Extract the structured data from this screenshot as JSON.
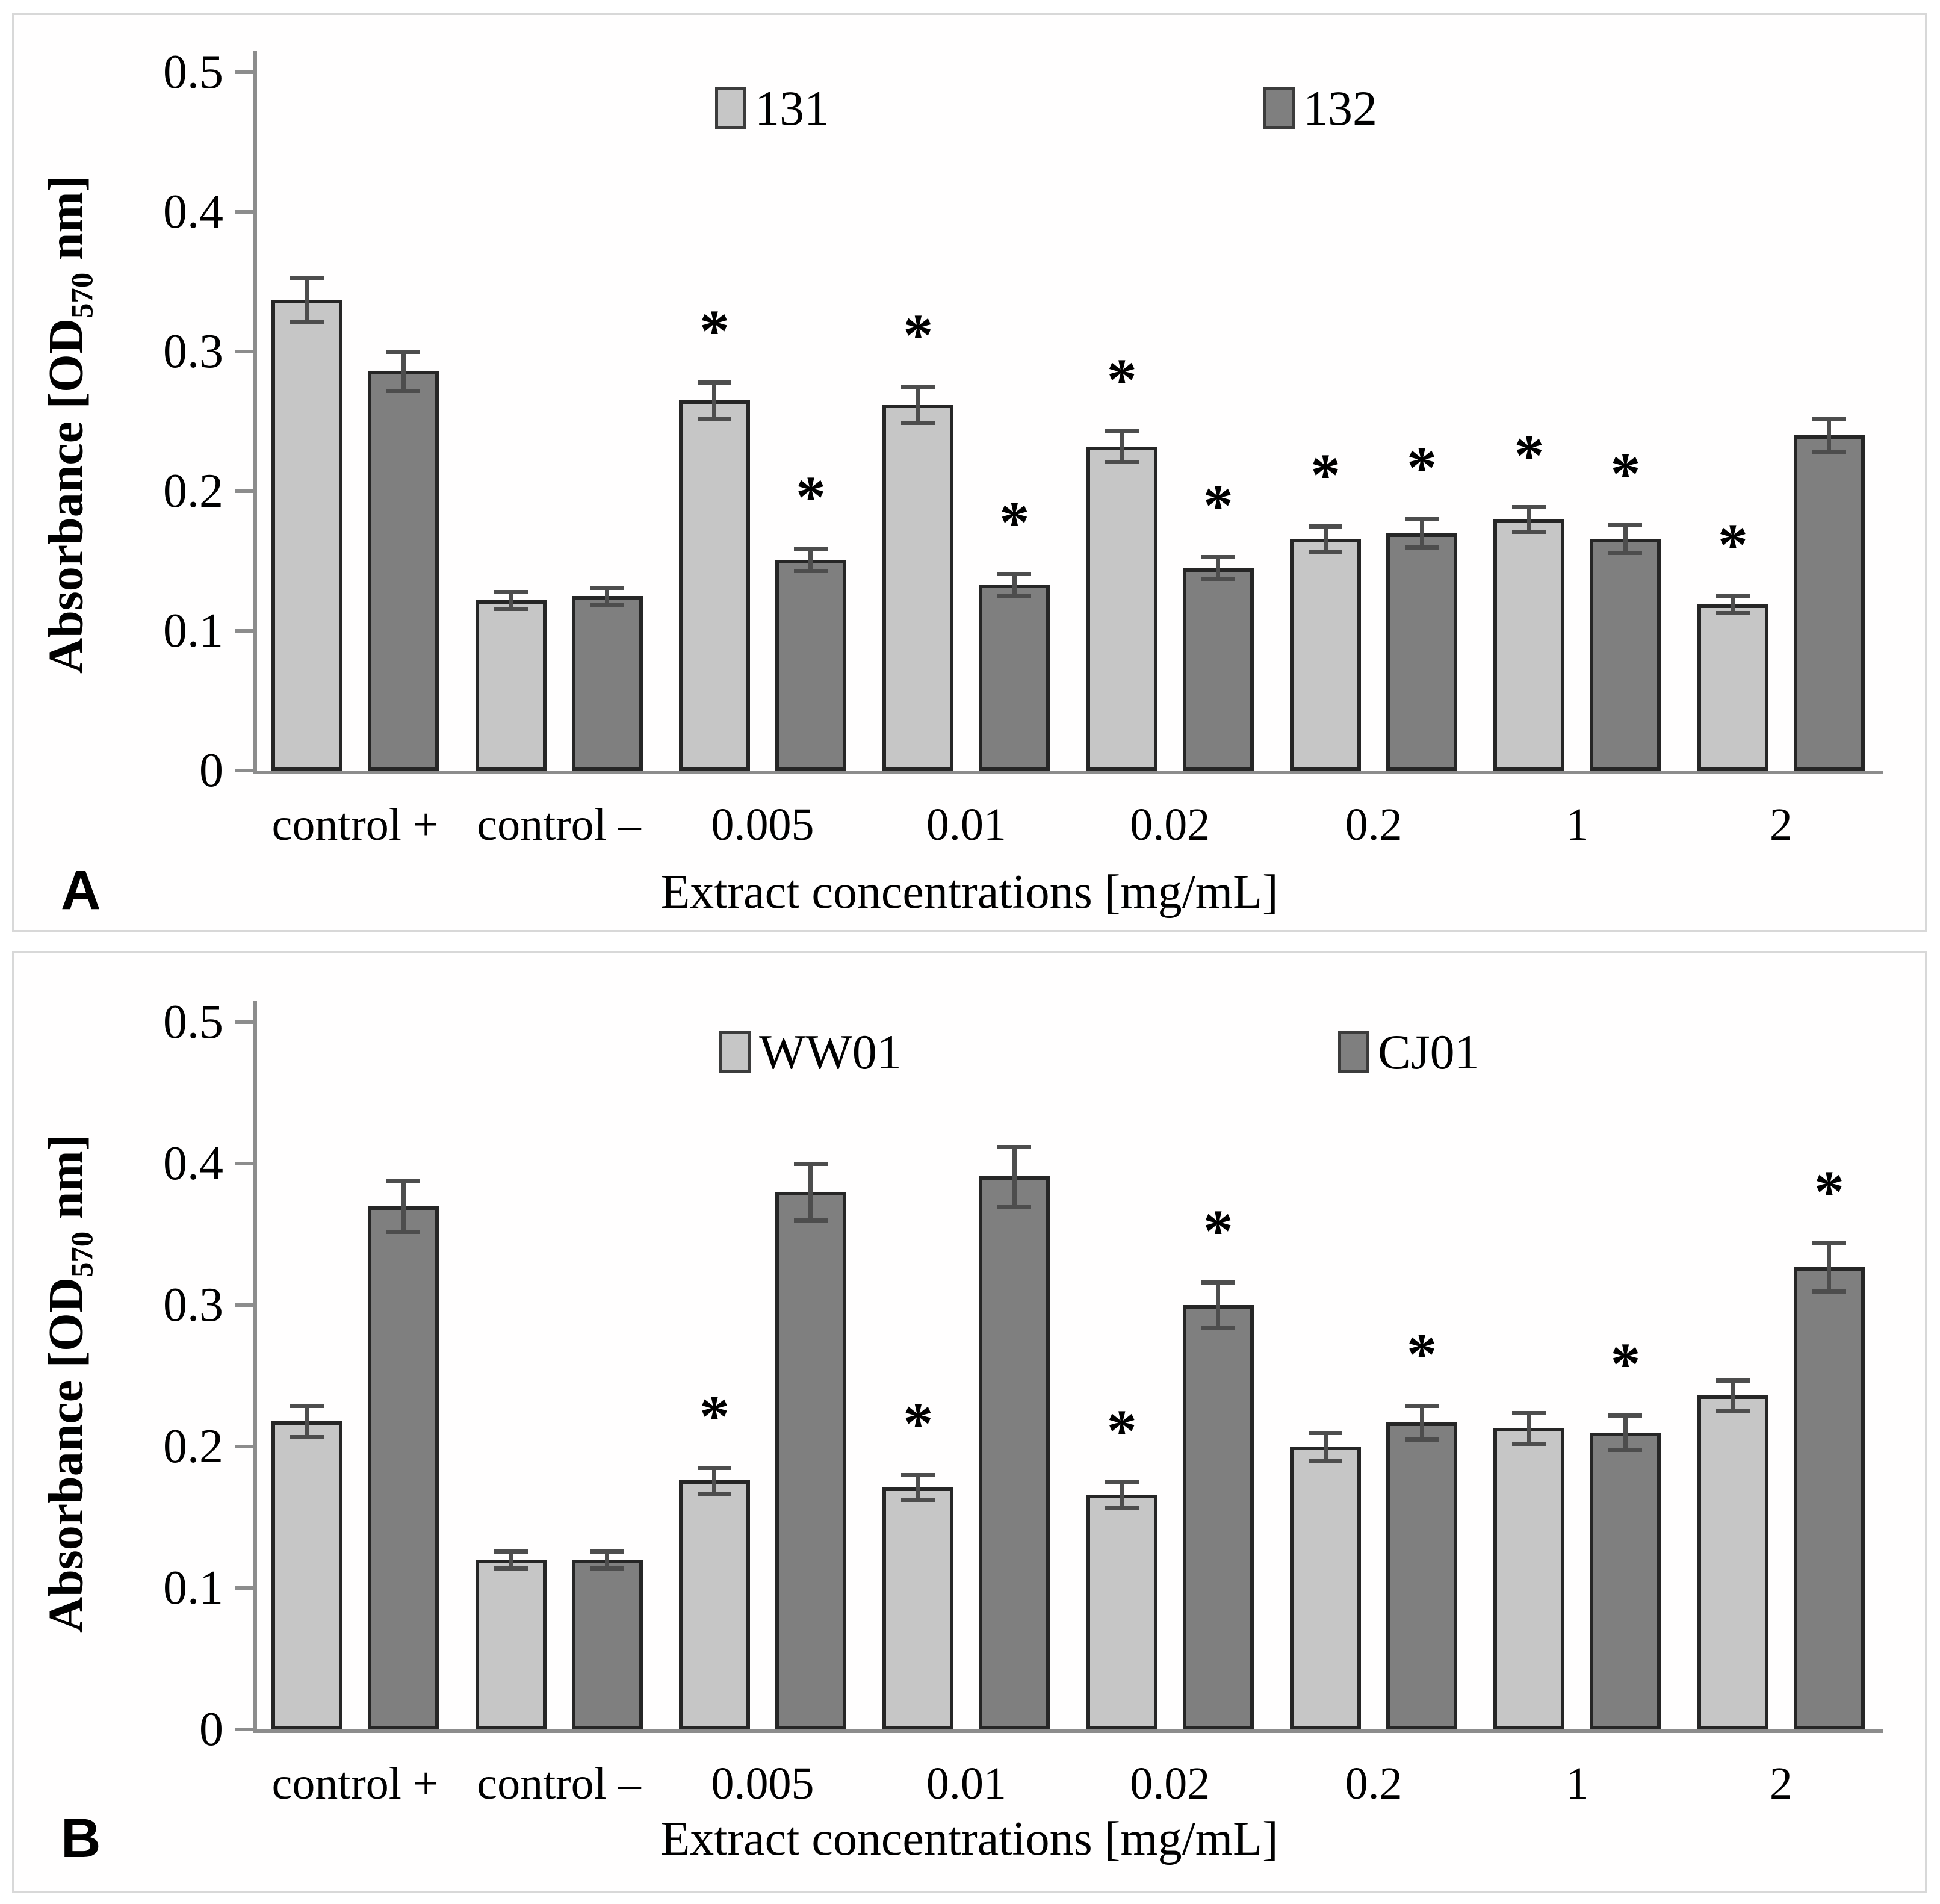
{
  "style": {
    "series_light_fill": "#c6c6c6",
    "series_dark_fill": "#7f7f7f",
    "bar_border": "#262626",
    "error_bar_color": "#4d4d4d",
    "axis_color": "#8c8c8c",
    "panel_border": "#d8d8d8",
    "significance_marker": "*"
  },
  "chart_data": [
    {
      "type": "bar",
      "panel": "A",
      "title": "",
      "xlabel": "Extract concentrations [mg/mL]",
      "ylabel": "Absorbance [OD570 nm]",
      "ylabel_parts": {
        "pre": "Absorbance [OD",
        "sub": "570",
        "post": " nm]"
      },
      "ylim": [
        0,
        0.5
      ],
      "ytick_values": [
        0,
        0.1,
        0.2,
        0.3,
        0.4,
        0.5
      ],
      "ytick_labels": [
        "0",
        "0.1",
        "0.2",
        "0.3",
        "0.4",
        "0.5"
      ],
      "grid": false,
      "legend_position": "top-center",
      "categories": [
        "control +",
        "control –",
        "0.005",
        "0.01",
        "0.02",
        "0.2",
        "1",
        "2"
      ],
      "series": [
        {
          "name": "131",
          "fill": "#c6c6c6",
          "values": [
            0.337,
            0.122,
            0.265,
            0.262,
            0.232,
            0.166,
            0.18,
            0.119
          ],
          "errors": [
            0.016,
            0.006,
            0.013,
            0.013,
            0.011,
            0.009,
            0.009,
            0.006
          ],
          "significant": [
            false,
            false,
            true,
            true,
            true,
            true,
            true,
            true
          ]
        },
        {
          "name": "132",
          "fill": "#7f7f7f",
          "values": [
            0.286,
            0.125,
            0.151,
            0.133,
            0.145,
            0.17,
            0.166,
            0.24
          ],
          "errors": [
            0.014,
            0.006,
            0.008,
            0.008,
            0.008,
            0.01,
            0.01,
            0.012
          ],
          "significant": [
            false,
            false,
            true,
            true,
            true,
            true,
            true,
            false
          ]
        }
      ]
    },
    {
      "type": "bar",
      "panel": "B",
      "title": "",
      "xlabel": "Extract concentrations [mg/mL]",
      "ylabel": "Absorbance [OD570 nm]",
      "ylabel_parts": {
        "pre": "Absorbance [OD",
        "sub": "570",
        "post": " nm]"
      },
      "ylim": [
        0,
        0.5
      ],
      "ytick_values": [
        0,
        0.1,
        0.2,
        0.3,
        0.4,
        0.5
      ],
      "ytick_labels": [
        "0",
        "0.1",
        "0.2",
        "0.3",
        "0.4",
        "0.5"
      ],
      "grid": false,
      "legend_position": "top-center",
      "categories": [
        "control +",
        "control –",
        "0.005",
        "0.01",
        "0.02",
        "0.2",
        "1",
        "2"
      ],
      "series": [
        {
          "name": "WW01",
          "fill": "#c6c6c6",
          "values": [
            0.218,
            0.12,
            0.176,
            0.171,
            0.166,
            0.2,
            0.213,
            0.236
          ],
          "errors": [
            0.011,
            0.006,
            0.009,
            0.009,
            0.009,
            0.01,
            0.011,
            0.011
          ],
          "significant": [
            false,
            false,
            true,
            true,
            true,
            false,
            false,
            false
          ]
        },
        {
          "name": "CJ01",
          "fill": "#7f7f7f",
          "values": [
            0.37,
            0.12,
            0.38,
            0.391,
            0.3,
            0.217,
            0.21,
            0.327
          ],
          "errors": [
            0.018,
            0.006,
            0.02,
            0.021,
            0.016,
            0.012,
            0.012,
            0.017
          ],
          "significant": [
            false,
            false,
            false,
            false,
            true,
            true,
            true,
            true
          ]
        }
      ]
    }
  ]
}
